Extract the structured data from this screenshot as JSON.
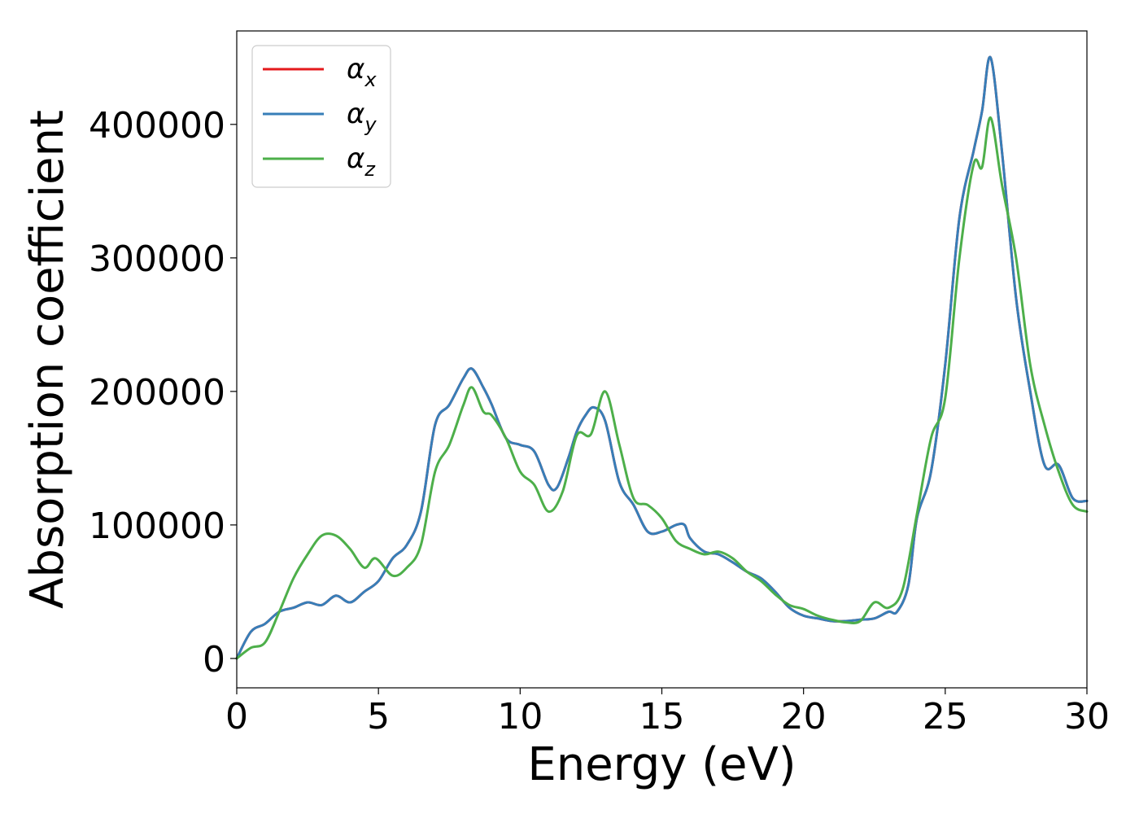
{
  "chart_data": {
    "type": "line",
    "title": "",
    "xlabel": "Energy (eV)",
    "ylabel": "Absorption coefficient",
    "xlim": [
      0,
      30
    ],
    "ylim": [
      -22000,
      470000
    ],
    "xticks": [
      0,
      5,
      10,
      15,
      20,
      25,
      30
    ],
    "xtick_labels": [
      "0",
      "5",
      "10",
      "15",
      "20",
      "25",
      "30"
    ],
    "yticks": [
      0,
      100000,
      200000,
      300000,
      400000
    ],
    "ytick_labels": [
      "0",
      "100000",
      "200000",
      "300000",
      "400000"
    ],
    "grid": false,
    "legend_position": "top-left",
    "series": [
      {
        "name": "α",
        "subscript": "x",
        "color": "#e41a1c",
        "x": [
          0,
          0.5,
          1.0,
          1.5,
          2.0,
          2.5,
          3.0,
          3.5,
          4.0,
          4.5,
          5.0,
          5.5,
          6.0,
          6.5,
          7.0,
          7.5,
          8.0,
          8.3,
          8.7,
          9.0,
          9.5,
          10.0,
          10.5,
          11.0,
          11.3,
          11.7,
          12.0,
          12.3,
          12.6,
          13.0,
          13.5,
          14.0,
          14.5,
          15.0,
          15.5,
          15.8,
          16.0,
          16.5,
          17.0,
          17.5,
          18.0,
          18.5,
          19.0,
          19.5,
          20.0,
          20.5,
          21.0,
          21.5,
          22.0,
          22.5,
          23.0,
          23.3,
          23.7,
          24.0,
          24.5,
          25.0,
          25.5,
          26.0,
          26.3,
          26.6,
          27.0,
          27.5,
          28.0,
          28.5,
          29.0,
          29.5,
          30.0
        ],
        "values": [
          0,
          20000,
          26000,
          35000,
          38000,
          42000,
          40000,
          47000,
          42000,
          50000,
          58000,
          75000,
          85000,
          110000,
          175000,
          190000,
          210000,
          217000,
          203000,
          190000,
          165000,
          160000,
          155000,
          130000,
          128000,
          150000,
          170000,
          182000,
          188000,
          178000,
          132000,
          115000,
          95000,
          95000,
          100000,
          100000,
          90000,
          80000,
          78000,
          72000,
          65000,
          60000,
          50000,
          38000,
          32000,
          30000,
          28000,
          28000,
          29000,
          30000,
          35000,
          35000,
          55000,
          105000,
          140000,
          220000,
          330000,
          380000,
          410000,
          450000,
          380000,
          270000,
          200000,
          145000,
          145000,
          120000,
          118000
        ]
      },
      {
        "name": "α",
        "subscript": "y",
        "color": "#377eb8",
        "x": [
          0,
          0.5,
          1.0,
          1.5,
          2.0,
          2.5,
          3.0,
          3.5,
          4.0,
          4.5,
          5.0,
          5.5,
          6.0,
          6.5,
          7.0,
          7.5,
          8.0,
          8.3,
          8.7,
          9.0,
          9.5,
          10.0,
          10.5,
          11.0,
          11.3,
          11.7,
          12.0,
          12.3,
          12.6,
          13.0,
          13.5,
          14.0,
          14.5,
          15.0,
          15.5,
          15.8,
          16.0,
          16.5,
          17.0,
          17.5,
          18.0,
          18.5,
          19.0,
          19.5,
          20.0,
          20.5,
          21.0,
          21.5,
          22.0,
          22.5,
          23.0,
          23.3,
          23.7,
          24.0,
          24.5,
          25.0,
          25.5,
          26.0,
          26.3,
          26.6,
          27.0,
          27.5,
          28.0,
          28.5,
          29.0,
          29.5,
          30.0
        ],
        "values": [
          0,
          20000,
          26000,
          35000,
          38000,
          42000,
          40000,
          47000,
          42000,
          50000,
          58000,
          75000,
          85000,
          110000,
          175000,
          190000,
          210000,
          217000,
          203000,
          190000,
          165000,
          160000,
          155000,
          130000,
          128000,
          150000,
          170000,
          182000,
          188000,
          178000,
          132000,
          115000,
          95000,
          95000,
          100000,
          100000,
          90000,
          80000,
          78000,
          72000,
          65000,
          60000,
          50000,
          38000,
          32000,
          30000,
          28000,
          28000,
          29000,
          30000,
          35000,
          35000,
          55000,
          105000,
          140000,
          220000,
          330000,
          380000,
          410000,
          450000,
          380000,
          270000,
          200000,
          145000,
          145000,
          120000,
          118000
        ]
      },
      {
        "name": "α",
        "subscript": "z",
        "color": "#4daf4a",
        "x": [
          0,
          0.5,
          1.0,
          1.5,
          2.0,
          2.5,
          3.0,
          3.5,
          4.0,
          4.5,
          4.9,
          5.5,
          6.0,
          6.5,
          7.0,
          7.5,
          8.0,
          8.3,
          8.7,
          9.0,
          9.5,
          10.0,
          10.5,
          11.0,
          11.5,
          12.0,
          12.5,
          13.0,
          13.5,
          14.0,
          14.5,
          15.0,
          15.5,
          16.0,
          16.5,
          17.0,
          17.5,
          18.0,
          18.5,
          19.0,
          19.5,
          20.0,
          20.5,
          21.0,
          21.5,
          22.0,
          22.5,
          23.0,
          23.5,
          24.0,
          24.5,
          25.0,
          25.5,
          26.0,
          26.3,
          26.6,
          27.0,
          27.5,
          28.0,
          28.5,
          29.0,
          29.5,
          30.0
        ],
        "values": [
          0,
          8000,
          12000,
          35000,
          60000,
          78000,
          92000,
          92000,
          82000,
          68000,
          75000,
          62000,
          68000,
          85000,
          140000,
          160000,
          190000,
          203000,
          185000,
          182000,
          165000,
          140000,
          130000,
          110000,
          125000,
          167000,
          168000,
          200000,
          160000,
          120000,
          115000,
          105000,
          88000,
          82000,
          78000,
          80000,
          75000,
          65000,
          58000,
          48000,
          40000,
          37000,
          32000,
          29000,
          27000,
          28000,
          42000,
          38000,
          52000,
          108000,
          165000,
          195000,
          300000,
          370000,
          368000,
          405000,
          355000,
          300000,
          220000,
          175000,
          140000,
          115000,
          110000
        ]
      }
    ]
  }
}
